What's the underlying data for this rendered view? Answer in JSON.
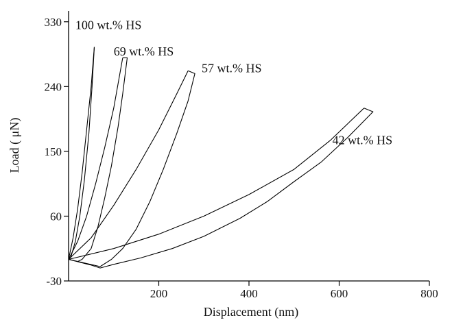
{
  "chart_data": {
    "type": "line",
    "xlabel": "Displacement (nm)",
    "ylabel": "Load ( μN)",
    "xlim": [
      0,
      800
    ],
    "ylim": [
      -30,
      345
    ],
    "x_ticks": [
      200,
      400,
      600,
      800
    ],
    "y_ticks": [
      -30,
      60,
      150,
      240,
      330
    ],
    "grid": false,
    "legend": "none",
    "series": [
      {
        "name": "100 wt.% HS",
        "label_at": [
          15,
          320
        ],
        "loading": [
          [
            0,
            0
          ],
          [
            10,
            30
          ],
          [
            20,
            70
          ],
          [
            30,
            120
          ],
          [
            40,
            180
          ],
          [
            50,
            240
          ],
          [
            57,
            295
          ]
        ],
        "unloading": [
          [
            57,
            295
          ],
          [
            52,
            240
          ],
          [
            45,
            175
          ],
          [
            35,
            110
          ],
          [
            25,
            60
          ],
          [
            15,
            25
          ],
          [
            5,
            3
          ],
          [
            0,
            0
          ]
        ]
      },
      {
        "name": "69 wt.% HS",
        "label_at": [
          100,
          283
        ],
        "loading": [
          [
            0,
            0
          ],
          [
            20,
            25
          ],
          [
            40,
            60
          ],
          [
            60,
            105
          ],
          [
            80,
            155
          ],
          [
            100,
            210
          ],
          [
            120,
            280
          ]
        ],
        "unloading": [
          [
            120,
            280
          ],
          [
            130,
            280
          ],
          [
            120,
            230
          ],
          [
            110,
            185
          ],
          [
            95,
            130
          ],
          [
            80,
            85
          ],
          [
            65,
            45
          ],
          [
            50,
            15
          ],
          [
            30,
            0
          ],
          [
            20,
            -3
          ],
          [
            0,
            0
          ]
        ]
      },
      {
        "name": "57 wt.% HS",
        "label_at": [
          295,
          260
        ],
        "loading": [
          [
            0,
            0
          ],
          [
            50,
            30
          ],
          [
            100,
            75
          ],
          [
            150,
            125
          ],
          [
            200,
            180
          ],
          [
            240,
            230
          ],
          [
            265,
            262
          ]
        ],
        "unloading": [
          [
            265,
            262
          ],
          [
            280,
            258
          ],
          [
            265,
            220
          ],
          [
            240,
            175
          ],
          [
            210,
            125
          ],
          [
            180,
            80
          ],
          [
            150,
            42
          ],
          [
            120,
            15
          ],
          [
            95,
            0
          ],
          [
            70,
            -10
          ],
          [
            0,
            0
          ]
        ]
      },
      {
        "name": "42 wt.% HS",
        "label_at": [
          585,
          160
        ],
        "loading": [
          [
            0,
            0
          ],
          [
            100,
            15
          ],
          [
            200,
            35
          ],
          [
            300,
            60
          ],
          [
            400,
            90
          ],
          [
            500,
            125
          ],
          [
            580,
            165
          ],
          [
            655,
            210
          ]
        ],
        "unloading": [
          [
            655,
            210
          ],
          [
            675,
            205
          ],
          [
            620,
            170
          ],
          [
            560,
            135
          ],
          [
            500,
            108
          ],
          [
            440,
            80
          ],
          [
            380,
            57
          ],
          [
            300,
            32
          ],
          [
            230,
            15
          ],
          [
            160,
            2
          ],
          [
            100,
            -7
          ],
          [
            70,
            -12
          ],
          [
            50,
            -8
          ],
          [
            0,
            0
          ]
        ]
      }
    ]
  }
}
